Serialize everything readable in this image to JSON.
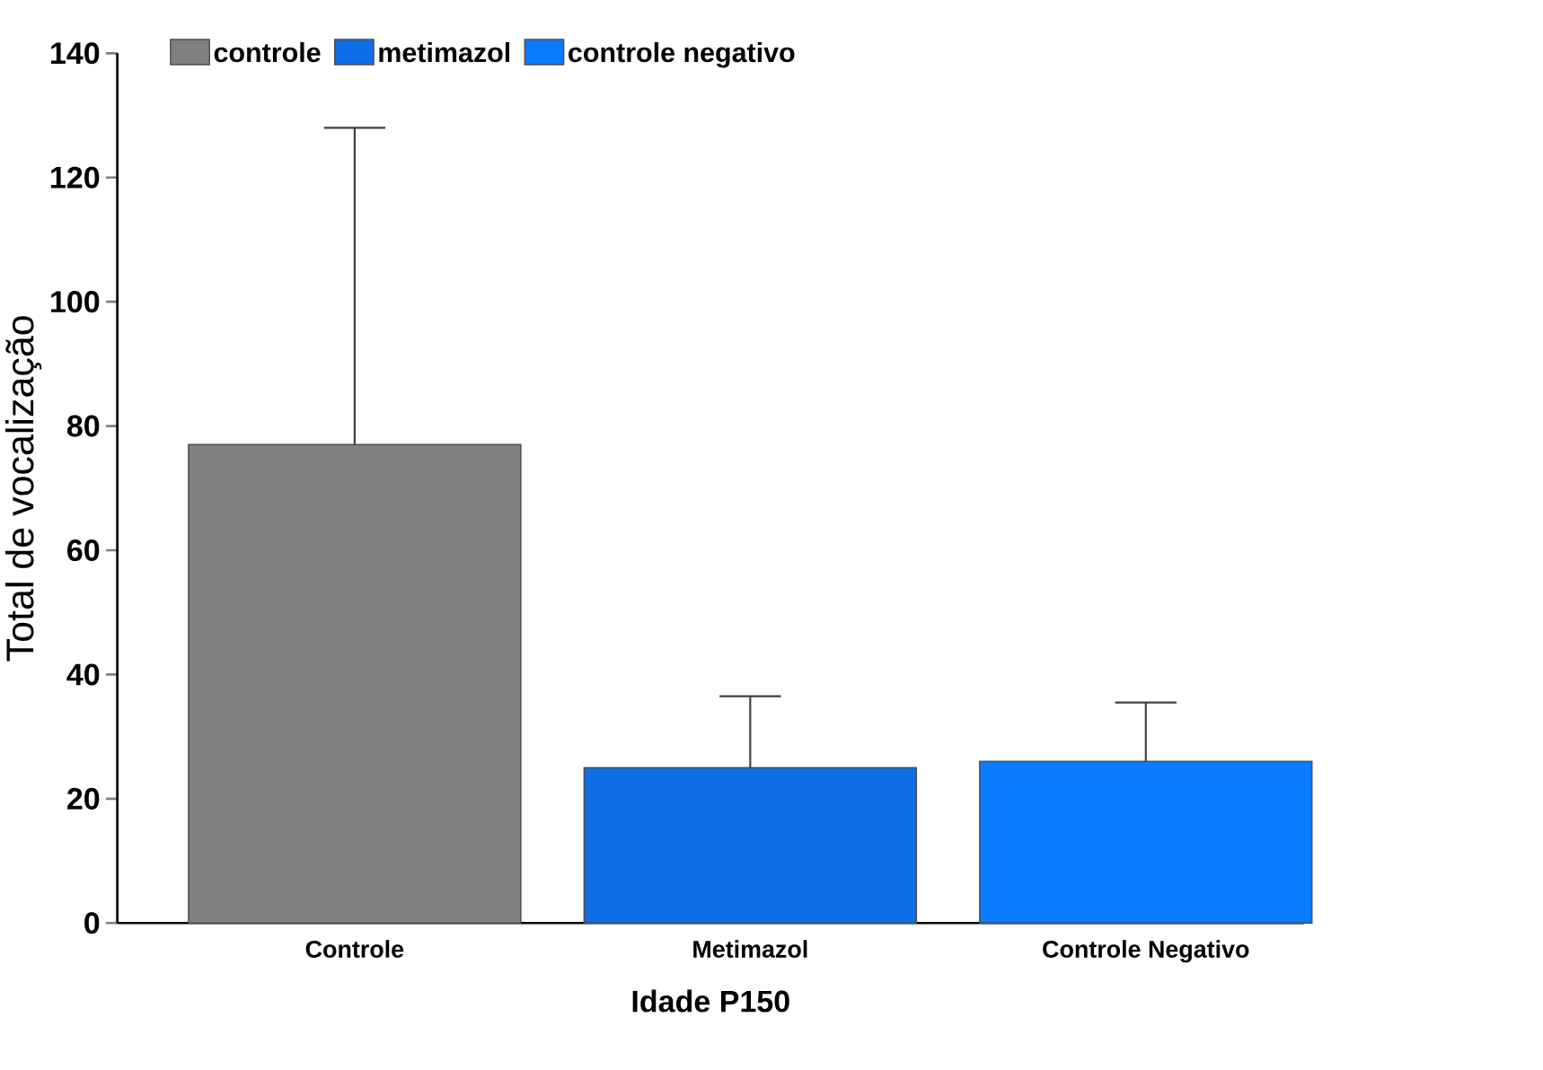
{
  "chart_data": {
    "type": "bar",
    "xlabel": "Idade P150",
    "ylabel": "Total de vocalização",
    "categories": [
      "Controle",
      "Metimazol",
      "Controle Negativo"
    ],
    "series": [
      {
        "name": "controle",
        "color": "#808080",
        "values": [
          77,
          null,
          null
        ],
        "errors": [
          [
            77,
            128
          ],
          null,
          null
        ]
      },
      {
        "name": "metimazol",
        "color": "#0f6fe6",
        "values": [
          null,
          25,
          null
        ],
        "errors": [
          null,
          [
            25,
            36.5
          ],
          null
        ]
      },
      {
        "name": "controle negativo",
        "color": "#0a7aff",
        "values": [
          null,
          null,
          26
        ],
        "errors": [
          null,
          null,
          [
            26,
            35.5
          ]
        ]
      }
    ],
    "ylim": [
      0,
      140
    ],
    "yticks": [
      0,
      20,
      40,
      60,
      80,
      100,
      120,
      140
    ],
    "legend": "top",
    "grid": false
  }
}
